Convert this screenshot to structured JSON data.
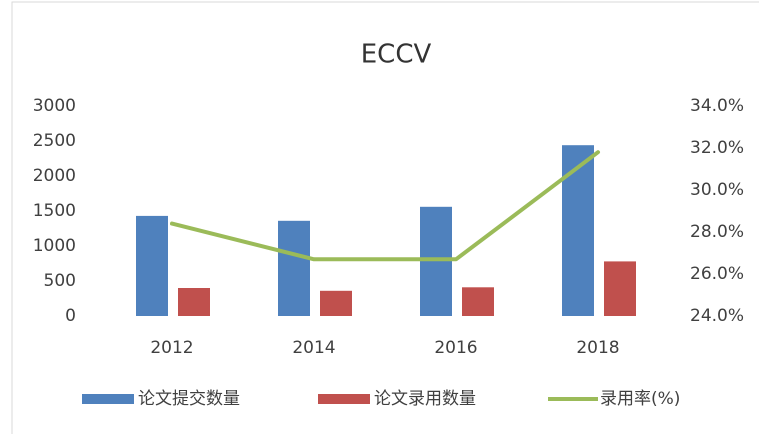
{
  "chart_data": {
    "type": "bar",
    "title": "ECCV",
    "categories": [
      "2012",
      "2014",
      "2016",
      "2018"
    ],
    "series": [
      {
        "name": "论文提交数量",
        "color": "#4f81bd",
        "values": [
          1430,
          1360,
          1560,
          2440
        ]
      },
      {
        "name": "论文录用数量",
        "color": "#c0504d",
        "values": [
          400,
          360,
          410,
          780
        ]
      },
      {
        "name": "录用率(%)",
        "color": "#9bbb59",
        "type": "line",
        "axis": "y2",
        "values": [
          28.4,
          26.7,
          26.7,
          31.8
        ]
      }
    ],
    "ylim": [
      0,
      3000
    ],
    "yticks": [
      0,
      500,
      1000,
      1500,
      2000,
      2500,
      3000
    ],
    "y2lim": [
      24,
      34
    ],
    "y2ticks": [
      {
        "value": 24,
        "label": "24.0%"
      },
      {
        "value": 26,
        "label": "26.0%"
      },
      {
        "value": 28,
        "label": "28.0%"
      },
      {
        "value": 30,
        "label": "30.0%"
      },
      {
        "value": 32,
        "label": "32.0%"
      },
      {
        "value": 34,
        "label": "34.0%"
      }
    ],
    "legend": "bottom",
    "grid": false
  }
}
